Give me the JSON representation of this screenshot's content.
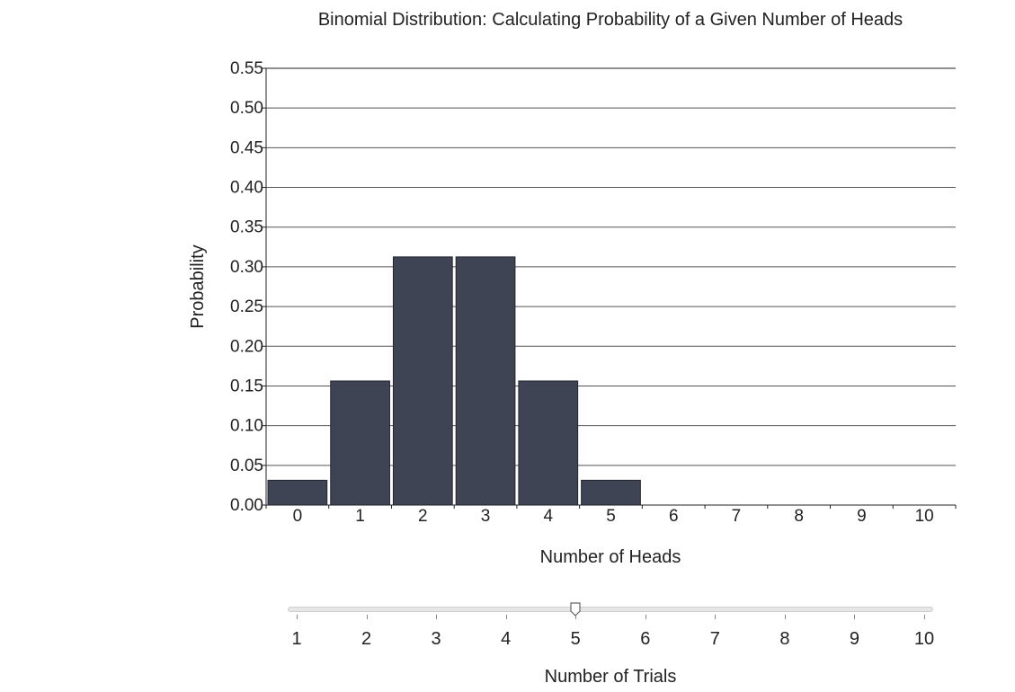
{
  "chart_data": {
    "type": "bar",
    "title": "Binomial Distribution: Calculating Probability of a Given Number of Heads",
    "xlabel": "Number of Heads",
    "ylabel": "Probability",
    "categories": [
      "0",
      "1",
      "2",
      "3",
      "4",
      "5",
      "6",
      "7",
      "8",
      "9",
      "10"
    ],
    "values": [
      0.03125,
      0.15625,
      0.3125,
      0.3125,
      0.15625,
      0.03125,
      0,
      0,
      0,
      0,
      0
    ],
    "ylim": [
      0,
      0.55
    ],
    "yticks": [
      "0.00",
      "0.05",
      "0.10",
      "0.15",
      "0.20",
      "0.25",
      "0.30",
      "0.35",
      "0.40",
      "0.45",
      "0.50",
      "0.55"
    ],
    "grid": true,
    "bar_color": "#3f4455"
  },
  "slider": {
    "label": "Number of Trials",
    "min": 1,
    "max": 10,
    "value": 5,
    "ticks": [
      "1",
      "2",
      "3",
      "4",
      "5",
      "6",
      "7",
      "8",
      "9",
      "10"
    ]
  }
}
